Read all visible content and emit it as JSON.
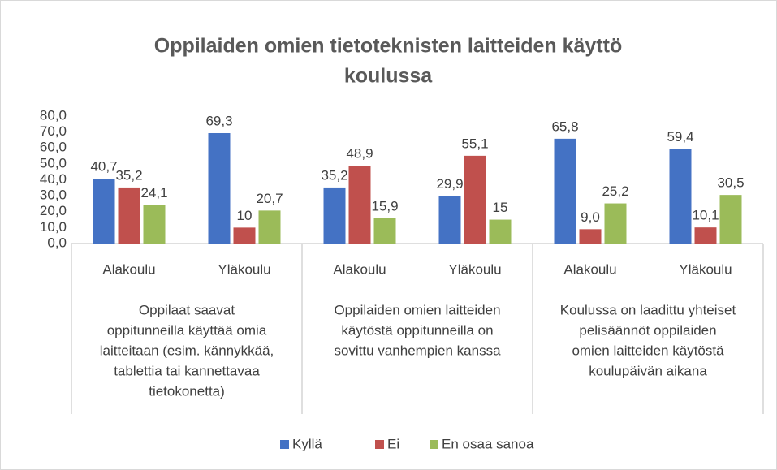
{
  "chart_data": {
    "type": "bar",
    "title": [
      "Oppilaiden omien tietoteknisten laitteiden käyttö",
      "koulussa"
    ],
    "categories": [
      "Alakoulu",
      "Yläkoulu",
      "Alakoulu",
      "Yläkoulu",
      "Alakoulu",
      "Yläkoulu"
    ],
    "groups": [
      {
        "label": [
          "Oppilaat saavat",
          "oppitunneilla käyttää omia",
          "laitteitaan (esim. kännykkää,",
          "tablettia tai kannettavaa",
          "tietokonetta)"
        ],
        "span": 2
      },
      {
        "label": [
          "Oppilaiden omien laitteiden",
          "käytöstä oppitunneilla on",
          "sovittu vanhempien kanssa"
        ],
        "span": 2
      },
      {
        "label": [
          "Koulussa on laadittu yhteiset",
          "pelisäännöt oppilaiden",
          "omien laitteiden käytöstä",
          "koulupäivän aikana"
        ],
        "span": 2
      }
    ],
    "series": [
      {
        "name": "Kyllä",
        "color": "#4472c4",
        "values": [
          40.7,
          69.3,
          35.2,
          29.9,
          65.8,
          59.4
        ],
        "value_labels": [
          "40,7",
          "69,3",
          "35,2",
          "29,9",
          "65,8",
          "59,4"
        ]
      },
      {
        "name": "Ei",
        "color": "#c0504d",
        "values": [
          35.2,
          10,
          48.9,
          55.1,
          9.0,
          10.1
        ],
        "value_labels": [
          "35,2",
          "10",
          "48,9",
          "55,1",
          "9,0",
          "10,1"
        ]
      },
      {
        "name": "En osaa sanoa",
        "color": "#9bbb59",
        "values": [
          24.1,
          20.7,
          15.9,
          15,
          25.2,
          30.5
        ],
        "value_labels": [
          "24,1",
          "20,7",
          "15,9",
          "15",
          "25,2",
          "30,5"
        ]
      }
    ],
    "ylim": [
      0,
      80
    ],
    "yticks": [
      {
        "value": 0,
        "label": "0,0"
      },
      {
        "value": 10,
        "label": "10,0"
      },
      {
        "value": 20,
        "label": "20,0"
      },
      {
        "value": 30,
        "label": "30,0"
      },
      {
        "value": 40,
        "label": "40,0"
      },
      {
        "value": 50,
        "label": "50,0"
      },
      {
        "value": 60,
        "label": "60,0"
      },
      {
        "value": 70,
        "label": "70,0"
      },
      {
        "value": 80,
        "label": "80,0"
      }
    ],
    "grid": false,
    "legend": "bottom"
  }
}
